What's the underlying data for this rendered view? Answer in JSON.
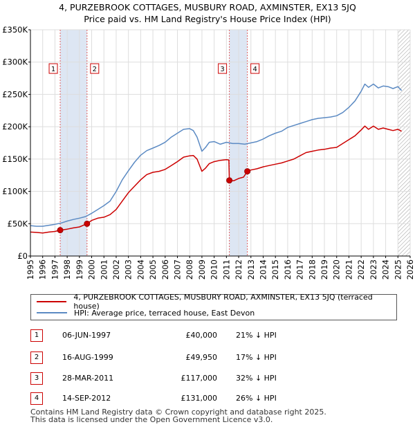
{
  "title_line1": "4, PURZEBROOK COTTAGES, MUSBURY ROAD, AXMINSTER, EX13 5JQ",
  "title_line2": "Price paid vs. HM Land Registry's House Price Index (HPI)",
  "chart_data": {
    "type": "line",
    "title": "4, PURZEBROOK COTTAGES, MUSBURY ROAD, AXMINSTER, EX13 5JQ - Price paid vs. HM Land Registry's House Price Index (HPI)",
    "xlabel": "",
    "ylabel": "",
    "xlim": [
      1995,
      2026
    ],
    "ylim": [
      0,
      350000
    ],
    "y_ticks": [
      0,
      50000,
      100000,
      150000,
      200000,
      250000,
      300000,
      350000
    ],
    "y_tick_labels": [
      "£0",
      "£50K",
      "£100K",
      "£150K",
      "£200K",
      "£250K",
      "£300K",
      "£350K"
    ],
    "x_ticks": [
      1995,
      1996,
      1997,
      1998,
      1999,
      2000,
      2001,
      2002,
      2003,
      2004,
      2005,
      2006,
      2007,
      2008,
      2009,
      2010,
      2011,
      2012,
      2013,
      2014,
      2015,
      2016,
      2017,
      2018,
      2019,
      2020,
      2021,
      2022,
      2023,
      2024,
      2025,
      2026
    ],
    "x_tick_labels": [
      "1995",
      "1996",
      "1997",
      "1998",
      "1999",
      "2000",
      "2001",
      "2002",
      "2003",
      "2004",
      "2005",
      "2006",
      "2007",
      "2008",
      "2009",
      "2010",
      "2011",
      "2012",
      "2013",
      "2014",
      "2015",
      "2016",
      "2017",
      "2018",
      "2019",
      "2020",
      "2021",
      "2022",
      "2023",
      "2024",
      "2025",
      "2026"
    ],
    "grid": true,
    "shaded_ranges": [
      [
        1997.43,
        1999.62
      ],
      [
        2011.24,
        2012.71
      ]
    ],
    "future_hatch_from": 2025.0,
    "series": [
      {
        "name": "4, PURZEBROOK COTTAGES, MUSBURY ROAD, AXMINSTER, EX13 5JQ (terraced house)",
        "color": "#cc0000",
        "x": [
          1995.0,
          1995.5,
          1996.0,
          1996.5,
          1997.0,
          1997.43,
          1998.0,
          1998.5,
          1999.0,
          1999.62,
          2000.0,
          2000.5,
          2001.0,
          2001.5,
          2002.0,
          2002.5,
          2003.0,
          2003.5,
          2004.0,
          2004.5,
          2005.0,
          2005.5,
          2006.0,
          2006.5,
          2007.0,
          2007.5,
          2008.0,
          2008.3,
          2008.6,
          2009.0,
          2009.3,
          2009.6,
          2010.0,
          2010.5,
          2011.0,
          2011.2,
          2011.24,
          2011.6,
          2012.0,
          2012.4,
          2012.71,
          2013.0,
          2013.5,
          2014.0,
          2014.5,
          2015.0,
          2015.5,
          2016.0,
          2016.5,
          2017.0,
          2017.5,
          2018.0,
          2018.5,
          2019.0,
          2019.5,
          2020.0,
          2020.5,
          2021.0,
          2021.5,
          2022.0,
          2022.3,
          2022.6,
          2023.0,
          2023.4,
          2023.8,
          2024.2,
          2024.6,
          2025.0,
          2025.3
        ],
        "values": [
          37000,
          36500,
          35500,
          37000,
          38000,
          40000,
          41500,
          43500,
          45000,
          49950,
          55000,
          58500,
          60000,
          64000,
          72000,
          85000,
          98000,
          108000,
          118000,
          126000,
          129500,
          131000,
          134000,
          140000,
          146000,
          153000,
          155000,
          155500,
          150000,
          131000,
          136000,
          143000,
          146000,
          148000,
          149000,
          148500,
          117000,
          116500,
          120000,
          122000,
          131000,
          133000,
          135000,
          138000,
          140000,
          142000,
          144000,
          147000,
          150000,
          155000,
          160000,
          162000,
          164000,
          165000,
          167000,
          168000,
          174000,
          180000,
          186000,
          195000,
          201000,
          196000,
          201000,
          196000,
          198000,
          196000,
          194000,
          196000,
          193000
        ]
      },
      {
        "name": "HPI: Average price, terraced house, East Devon",
        "color": "#5b8ac3",
        "x": [
          1995.0,
          1995.5,
          1996.0,
          1996.5,
          1997.0,
          1997.5,
          1998.0,
          1998.5,
          1999.0,
          1999.5,
          2000.0,
          2000.5,
          2001.0,
          2001.5,
          2002.0,
          2002.5,
          2003.0,
          2003.5,
          2004.0,
          2004.5,
          2005.0,
          2005.5,
          2006.0,
          2006.5,
          2007.0,
          2007.5,
          2008.0,
          2008.3,
          2008.6,
          2009.0,
          2009.3,
          2009.6,
          2010.0,
          2010.5,
          2011.0,
          2011.5,
          2012.0,
          2012.5,
          2013.0,
          2013.5,
          2014.0,
          2014.5,
          2015.0,
          2015.5,
          2016.0,
          2016.5,
          2017.0,
          2017.5,
          2018.0,
          2018.5,
          2019.0,
          2019.5,
          2020.0,
          2020.5,
          2021.0,
          2021.5,
          2022.0,
          2022.3,
          2022.6,
          2023.0,
          2023.4,
          2023.8,
          2024.2,
          2024.6,
          2025.0,
          2025.3
        ],
        "values": [
          47000,
          46000,
          46000,
          47500,
          49000,
          51000,
          54000,
          56500,
          58500,
          61000,
          66000,
          72000,
          78000,
          85000,
          100000,
          118000,
          132000,
          145000,
          156000,
          163000,
          167000,
          171000,
          176000,
          184000,
          190000,
          196000,
          197000,
          194000,
          184000,
          162000,
          168000,
          176000,
          177000,
          173000,
          176000,
          174000,
          174000,
          173000,
          175000,
          177000,
          181000,
          186000,
          190000,
          193000,
          199000,
          202000,
          205000,
          208000,
          211000,
          213000,
          214000,
          215000,
          217000,
          222000,
          230000,
          240000,
          255000,
          266000,
          261000,
          266000,
          260000,
          263000,
          262000,
          259000,
          262000,
          256000
        ]
      }
    ],
    "transactions": [
      {
        "id": "1",
        "date": "06-JUN-1997",
        "x": 1997.43,
        "price_value": 40000,
        "price": "£40,000",
        "hpi": "21% ↓ HPI"
      },
      {
        "id": "2",
        "date": "16-AUG-1999",
        "x": 1999.62,
        "price_value": 49950,
        "price": "£49,950",
        "hpi": "17% ↓ HPI"
      },
      {
        "id": "3",
        "date": "28-MAR-2011",
        "x": 2011.24,
        "price_value": 117000,
        "price": "£117,000",
        "hpi": "32% ↓ HPI"
      },
      {
        "id": "4",
        "date": "14-SEP-2012",
        "x": 2012.71,
        "price_value": 131000,
        "price": "£131,000",
        "hpi": "26% ↓ HPI"
      }
    ],
    "marker_box_value": 290000
  },
  "legend": {
    "red_label": "4, PURZEBROOK COTTAGES, MUSBURY ROAD, AXMINSTER, EX13 5JQ (terraced house)",
    "blue_label": "HPI: Average price, terraced house, East Devon",
    "red_color": "#cc0000",
    "blue_color": "#5b8ac3"
  },
  "footer": {
    "line1": "Contains HM Land Registry data © Crown copyright and database right 2025.",
    "line2": "This data is licensed under the Open Government Licence v3.0."
  }
}
